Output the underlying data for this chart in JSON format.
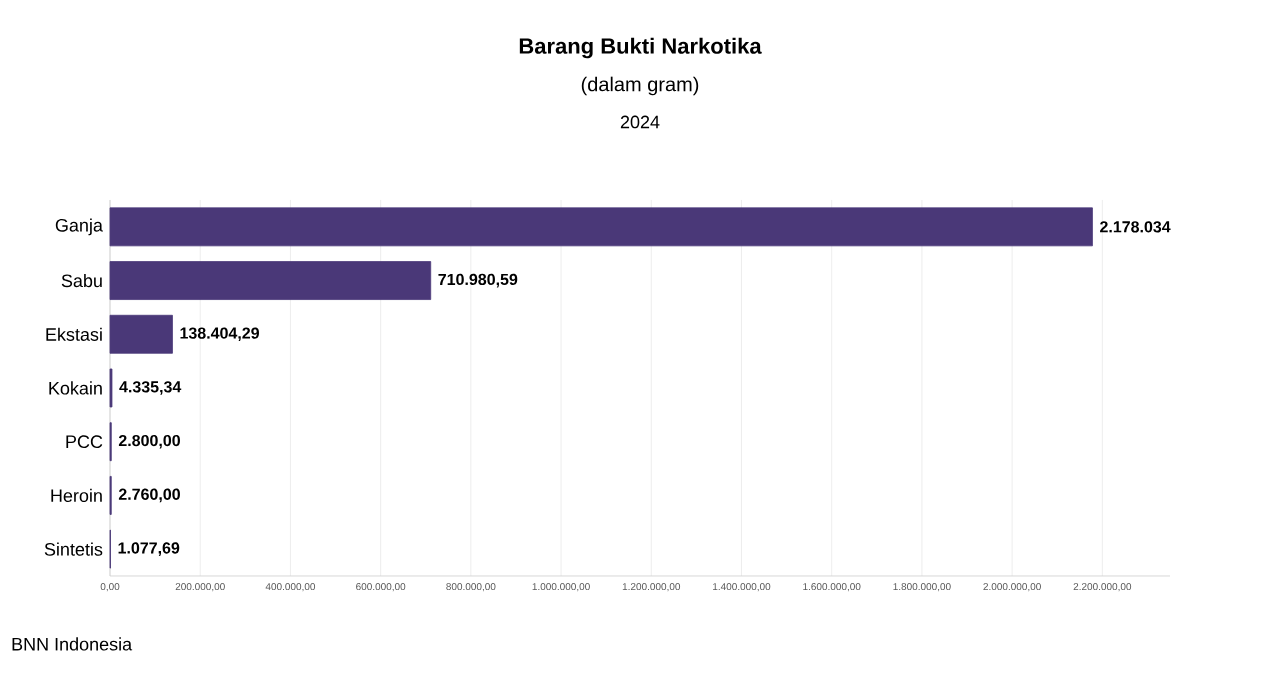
{
  "chart_data": {
    "type": "bar",
    "orientation": "horizontal",
    "title": "Barang Bukti Narkotika",
    "subtitle": "(dalam gram)",
    "annotations": [
      "2024",
      "BNN Indonesia"
    ],
    "categories": [
      "Ganja",
      "Sabu",
      "Ekstasi",
      "Kokain",
      "PCC",
      "Heroin",
      "Sintetis"
    ],
    "values": [
      2178034,
      710980.59,
      138404.29,
      4335.34,
      2800,
      2760,
      1077.69
    ],
    "value_labels": [
      "2.178.034",
      "710.980,59",
      "138.404,29",
      "4.335,34",
      "2.800,00",
      "2.760,00",
      "1.077,69"
    ],
    "color": "#4a3878",
    "xlim": [
      0,
      2350000
    ],
    "xticks": [
      {
        "value": 0,
        "label": "0,00"
      },
      {
        "value": 200000,
        "label": "200.000,00"
      },
      {
        "value": 400000,
        "label": "400.000,00"
      },
      {
        "value": 600000,
        "label": "600.000,00"
      },
      {
        "value": 800000,
        "label": "800.000,00"
      },
      {
        "value": 1000000,
        "label": "1.000.000,00"
      },
      {
        "value": 1200000,
        "label": "1.200.000,00"
      },
      {
        "value": 1400000,
        "label": "1.400.000,00"
      },
      {
        "value": 1600000,
        "label": "1.600.000,00"
      },
      {
        "value": 1800000,
        "label": "1.800.000,00"
      },
      {
        "value": 2000000,
        "label": "2.000.000,00"
      },
      {
        "value": 2200000,
        "label": "2.200.000,00"
      }
    ],
    "grid": "x"
  }
}
